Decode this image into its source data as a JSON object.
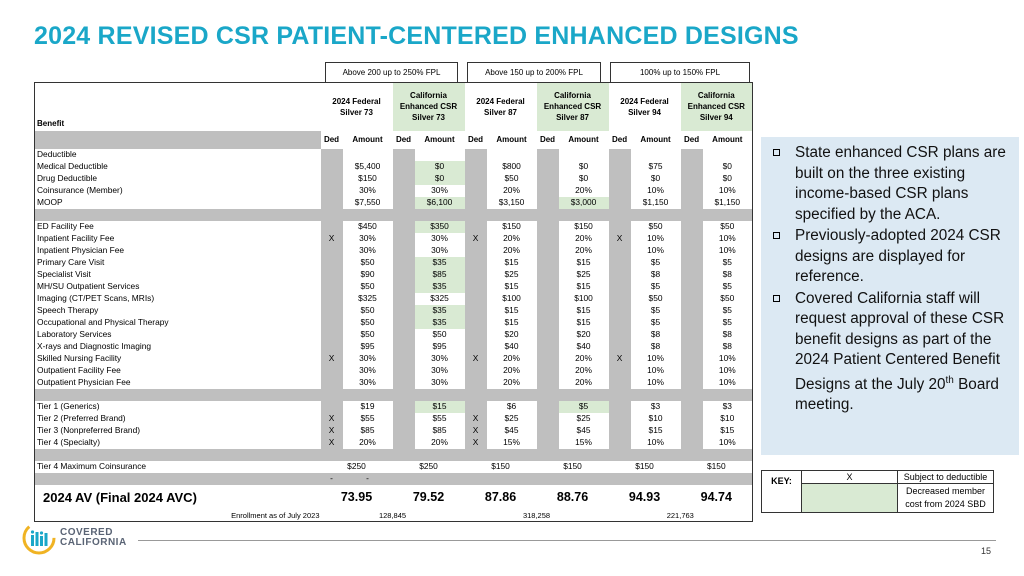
{
  "title": "2024 REVISED CSR PATIENT-CENTERED ENHANCED DESIGNS",
  "fpl_headers": [
    "Above 200 up to 250% FPL",
    "Above 150 up to 200% FPL",
    "100% up to 150% FPL"
  ],
  "table": {
    "benefit_header": "Benefit",
    "plan_headers": [
      "2024 Federal Silver 73",
      "California Enhanced CSR Silver 73",
      "2024 Federal Silver 87",
      "California Enhanced CSR Silver 87",
      "2024 Federal Silver 94",
      "California Enhanced CSR Silver 94"
    ],
    "sub_headers": [
      "Ded",
      "Amount",
      "Ded",
      "Amount",
      "Ded",
      "Amount",
      "Ded",
      "Amount",
      "Ded",
      "Amount",
      "Ded",
      "Amount"
    ],
    "rows": [
      {
        "label": "Deductible",
        "cells": [
          "",
          "",
          "",
          "",
          "",
          "",
          "",
          "",
          "",
          "",
          "",
          ""
        ]
      },
      {
        "label": "Medical Deductible",
        "cells": [
          "",
          "$5,400",
          "",
          "$0",
          "",
          "$800",
          "",
          "$0",
          "",
          "$75",
          "",
          "$0"
        ]
      },
      {
        "label": "Drug Deductible",
        "cells": [
          "",
          "$150",
          "",
          "$0",
          "",
          "$50",
          "",
          "$0",
          "",
          "$0",
          "",
          "$0"
        ]
      },
      {
        "label": "Coinsurance (Member)",
        "cells": [
          "",
          "30%",
          "",
          "30%",
          "",
          "20%",
          "",
          "20%",
          "",
          "10%",
          "",
          "10%"
        ]
      },
      {
        "label": "MOOP",
        "cells": [
          "",
          "$7,550",
          "",
          "$6,100",
          "",
          "$3,150",
          "",
          "$3,000",
          "",
          "$1,150",
          "",
          "$1,150"
        ]
      },
      {
        "sep": true
      },
      {
        "label": "ED Facility Fee",
        "cells": [
          "",
          "$450",
          "",
          "$350",
          "",
          "$150",
          "",
          "$150",
          "",
          "$50",
          "",
          "$50"
        ]
      },
      {
        "label": "Inpatient Facility Fee",
        "cells": [
          "X",
          "30%",
          "",
          "30%",
          "X",
          "20%",
          "",
          "20%",
          "X",
          "10%",
          "",
          "10%"
        ]
      },
      {
        "label": "Inpatient Physician Fee",
        "cells": [
          "",
          "30%",
          "",
          "30%",
          "",
          "20%",
          "",
          "20%",
          "",
          "10%",
          "",
          "10%"
        ]
      },
      {
        "label": "Primary Care Visit",
        "cells": [
          "",
          "$50",
          "",
          "$35",
          "",
          "$15",
          "",
          "$15",
          "",
          "$5",
          "",
          "$5"
        ]
      },
      {
        "label": "Specialist Visit",
        "cells": [
          "",
          "$90",
          "",
          "$85",
          "",
          "$25",
          "",
          "$25",
          "",
          "$8",
          "",
          "$8"
        ]
      },
      {
        "label": "MH/SU Outpatient Services",
        "cells": [
          "",
          "$50",
          "",
          "$35",
          "",
          "$15",
          "",
          "$15",
          "",
          "$5",
          "",
          "$5"
        ]
      },
      {
        "label": "Imaging (CT/PET Scans, MRIs)",
        "cells": [
          "",
          "$325",
          "",
          "$325",
          "",
          "$100",
          "",
          "$100",
          "",
          "$50",
          "",
          "$50"
        ]
      },
      {
        "label": "Speech Therapy",
        "cells": [
          "",
          "$50",
          "",
          "$35",
          "",
          "$15",
          "",
          "$15",
          "",
          "$5",
          "",
          "$5"
        ]
      },
      {
        "label": "Occupational and Physical Therapy",
        "cells": [
          "",
          "$50",
          "",
          "$35",
          "",
          "$15",
          "",
          "$15",
          "",
          "$5",
          "",
          "$5"
        ]
      },
      {
        "label": "Laboratory Services",
        "cells": [
          "",
          "$50",
          "",
          "$50",
          "",
          "$20",
          "",
          "$20",
          "",
          "$8",
          "",
          "$8"
        ]
      },
      {
        "label": "X-rays and Diagnostic Imaging",
        "cells": [
          "",
          "$95",
          "",
          "$95",
          "",
          "$40",
          "",
          "$40",
          "",
          "$8",
          "",
          "$8"
        ]
      },
      {
        "label": "Skilled Nursing Facility",
        "cells": [
          "X",
          "30%",
          "",
          "30%",
          "X",
          "20%",
          "",
          "20%",
          "X",
          "10%",
          "",
          "10%"
        ]
      },
      {
        "label": "Outpatient Facility Fee",
        "cells": [
          "",
          "30%",
          "",
          "30%",
          "",
          "20%",
          "",
          "20%",
          "",
          "10%",
          "",
          "10%"
        ]
      },
      {
        "label": "Outpatient Physician Fee",
        "cells": [
          "",
          "30%",
          "",
          "30%",
          "",
          "20%",
          "",
          "20%",
          "",
          "10%",
          "",
          "10%"
        ]
      },
      {
        "sep": true
      },
      {
        "label": "Tier 1 (Generics)",
        "cells": [
          "",
          "$19",
          "",
          "$15",
          "",
          "$6",
          "",
          "$5",
          "",
          "$3",
          "",
          "$3"
        ]
      },
      {
        "label": "Tier 2 (Preferred Brand)",
        "cells": [
          "X",
          "$55",
          "",
          "$55",
          "X",
          "$25",
          "",
          "$25",
          "",
          "$10",
          "",
          "$10"
        ]
      },
      {
        "label": "Tier 3 (Nonpreferred Brand)",
        "cells": [
          "X",
          "$85",
          "",
          "$85",
          "X",
          "$45",
          "",
          "$45",
          "",
          "$15",
          "",
          "$15"
        ]
      },
      {
        "label": "Tier 4 (Specialty)",
        "cells": [
          "X",
          "20%",
          "",
          "20%",
          "X",
          "15%",
          "",
          "15%",
          "",
          "10%",
          "",
          "10%"
        ]
      },
      {
        "sep": true
      },
      {
        "label": "Tier 4 Maximum Coinsurance",
        "spans": [
          "$250",
          "$250",
          "$150",
          "$150",
          "$150",
          "$150"
        ]
      },
      {
        "sep": true,
        "marks": [
          "-",
          "-"
        ]
      }
    ],
    "highlighted": {
      "1": [
        3
      ],
      "2": [
        3
      ],
      "4": [
        3,
        7
      ],
      "6": [
        3
      ],
      "9": [
        3
      ],
      "10": [
        3
      ],
      "11": [
        3
      ],
      "13": [
        3
      ],
      "14": [
        3
      ],
      "21": [
        3,
        7
      ]
    },
    "av_label": "2024 AV (Final 2024 AVC)",
    "av_values": [
      "73.95",
      "79.52",
      "87.86",
      "88.76",
      "94.93",
      "94.74"
    ],
    "enrollment_label": "Enrollment as of July 2023",
    "enrollment_values": [
      "128,845",
      "318,258",
      "221,763"
    ]
  },
  "notes": [
    "State enhanced CSR plans are built on the three existing income-based CSR plans specified by the ACA.",
    "Previously-adopted 2024 CSR designs are displayed for reference.",
    "Covered California staff will request approval of these CSR benefit designs as part of the 2024 Patient Centered Benefit Designs at the July 20th Board meeting."
  ],
  "key": {
    "label": "KEY:",
    "x_symbol": "X",
    "x_desc": "Subject to deductible",
    "green_desc": "Decreased member cost from 2024 SBD"
  },
  "colors": {
    "title": "#1aa7c8",
    "highlight": "#d9ead3",
    "notes_bg": "#dce9f3",
    "separator": "#bfbfbf"
  },
  "logo": {
    "line1": "COVERED",
    "line2": "CALIFORNIA"
  },
  "page_number": "15"
}
